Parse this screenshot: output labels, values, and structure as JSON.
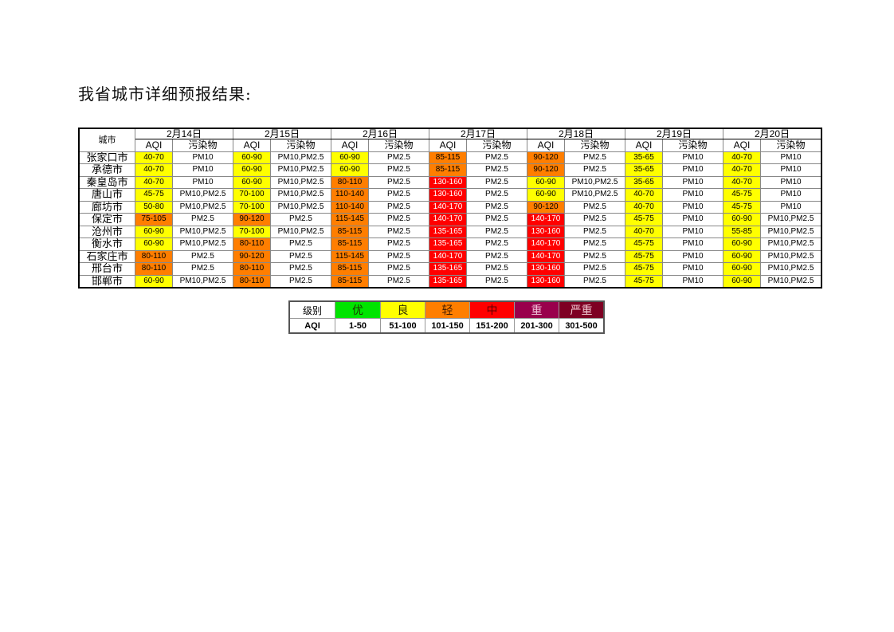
{
  "title": "我省城市详细预报结果:",
  "table": {
    "city_header": "城市",
    "aqi_header": "AQI",
    "pollutant_header": "污染物",
    "dates": [
      "2月14日",
      "2月15日",
      "2月16日",
      "2月17日",
      "2月18日",
      "2月19日",
      "2月20日"
    ],
    "rows": [
      {
        "city": "张家口市",
        "cells": [
          [
            "40-70",
            "PM10"
          ],
          [
            "60-90",
            "PM10,PM2.5"
          ],
          [
            "60-90",
            "PM2.5"
          ],
          [
            "85-115",
            "PM2.5"
          ],
          [
            "90-120",
            "PM2.5"
          ],
          [
            "35-65",
            "PM10"
          ],
          [
            "40-70",
            "PM10"
          ]
        ]
      },
      {
        "city": "承德市",
        "cells": [
          [
            "40-70",
            "PM10"
          ],
          [
            "60-90",
            "PM10,PM2.5"
          ],
          [
            "60-90",
            "PM2.5"
          ],
          [
            "85-115",
            "PM2.5"
          ],
          [
            "90-120",
            "PM2.5"
          ],
          [
            "35-65",
            "PM10"
          ],
          [
            "40-70",
            "PM10"
          ]
        ]
      },
      {
        "city": "秦皇岛市",
        "cells": [
          [
            "40-70",
            "PM10"
          ],
          [
            "60-90",
            "PM10,PM2.5"
          ],
          [
            "80-110",
            "PM2.5"
          ],
          [
            "130-160",
            "PM2.5"
          ],
          [
            "60-90",
            "PM10,PM2.5"
          ],
          [
            "35-65",
            "PM10"
          ],
          [
            "40-70",
            "PM10"
          ]
        ]
      },
      {
        "city": "唐山市",
        "cells": [
          [
            "45-75",
            "PM10,PM2.5"
          ],
          [
            "70-100",
            "PM10,PM2.5"
          ],
          [
            "110-140",
            "PM2.5"
          ],
          [
            "130-160",
            "PM2.5"
          ],
          [
            "60-90",
            "PM10,PM2.5"
          ],
          [
            "40-70",
            "PM10"
          ],
          [
            "45-75",
            "PM10"
          ]
        ]
      },
      {
        "city": "廊坊市",
        "cells": [
          [
            "50-80",
            "PM10,PM2.5"
          ],
          [
            "70-100",
            "PM10,PM2.5"
          ],
          [
            "110-140",
            "PM2.5"
          ],
          [
            "140-170",
            "PM2.5"
          ],
          [
            "90-120",
            "PM2.5"
          ],
          [
            "40-70",
            "PM10"
          ],
          [
            "45-75",
            "PM10"
          ]
        ]
      },
      {
        "city": "保定市",
        "cells": [
          [
            "75-105",
            "PM2.5"
          ],
          [
            "90-120",
            "PM2.5"
          ],
          [
            "115-145",
            "PM2.5"
          ],
          [
            "140-170",
            "PM2.5"
          ],
          [
            "140-170",
            "PM2.5"
          ],
          [
            "45-75",
            "PM10"
          ],
          [
            "60-90",
            "PM10,PM2.5"
          ]
        ]
      },
      {
        "city": "沧州市",
        "cells": [
          [
            "60-90",
            "PM10,PM2.5"
          ],
          [
            "70-100",
            "PM10,PM2.5"
          ],
          [
            "85-115",
            "PM2.5"
          ],
          [
            "135-165",
            "PM2.5"
          ],
          [
            "130-160",
            "PM2.5"
          ],
          [
            "40-70",
            "PM10"
          ],
          [
            "55-85",
            "PM10,PM2.5"
          ]
        ]
      },
      {
        "city": "衡水市",
        "cells": [
          [
            "60-90",
            "PM10,PM2.5"
          ],
          [
            "80-110",
            "PM2.5"
          ],
          [
            "85-115",
            "PM2.5"
          ],
          [
            "135-165",
            "PM2.5"
          ],
          [
            "140-170",
            "PM2.5"
          ],
          [
            "45-75",
            "PM10"
          ],
          [
            "60-90",
            "PM10,PM2.5"
          ]
        ]
      },
      {
        "city": "石家庄市",
        "cells": [
          [
            "80-110",
            "PM2.5"
          ],
          [
            "90-120",
            "PM2.5"
          ],
          [
            "115-145",
            "PM2.5"
          ],
          [
            "140-170",
            "PM2.5"
          ],
          [
            "140-170",
            "PM2.5"
          ],
          [
            "45-75",
            "PM10"
          ],
          [
            "60-90",
            "PM10,PM2.5"
          ]
        ]
      },
      {
        "city": "邢台市",
        "cells": [
          [
            "80-110",
            "PM2.5"
          ],
          [
            "80-110",
            "PM2.5"
          ],
          [
            "85-115",
            "PM2.5"
          ],
          [
            "135-165",
            "PM2.5"
          ],
          [
            "130-160",
            "PM2.5"
          ],
          [
            "45-75",
            "PM10"
          ],
          [
            "60-90",
            "PM10,PM2.5"
          ]
        ]
      },
      {
        "city": "邯郸市",
        "cells": [
          [
            "60-90",
            "PM10,PM2.5"
          ],
          [
            "80-110",
            "PM2.5"
          ],
          [
            "85-115",
            "PM2.5"
          ],
          [
            "135-165",
            "PM2.5"
          ],
          [
            "130-160",
            "PM2.5"
          ],
          [
            "45-75",
            "PM10"
          ],
          [
            "60-90",
            "PM10,PM2.5"
          ]
        ]
      }
    ]
  },
  "legend": {
    "level_header": "级别",
    "aqi_header": "AQI",
    "levels": [
      {
        "name": "优",
        "range": "1-50",
        "max": 50,
        "color": "#00e400",
        "text": "#1a3a00"
      },
      {
        "name": "良",
        "range": "51-100",
        "max": 100,
        "color": "#ffff00",
        "text": "#333300"
      },
      {
        "name": "轻",
        "range": "101-150",
        "max": 150,
        "color": "#ff7e00",
        "text": "#4a2000"
      },
      {
        "name": "中",
        "range": "151-200",
        "max": 200,
        "color": "#ff0000",
        "text": "#600000"
      },
      {
        "name": "重",
        "range": "201-300",
        "max": 300,
        "color": "#99004c",
        "text": "#f0c0d8"
      },
      {
        "name": "严重",
        "range": "301-500",
        "max": 500,
        "color": "#7e0023",
        "text": "#f0c8d0"
      }
    ]
  }
}
